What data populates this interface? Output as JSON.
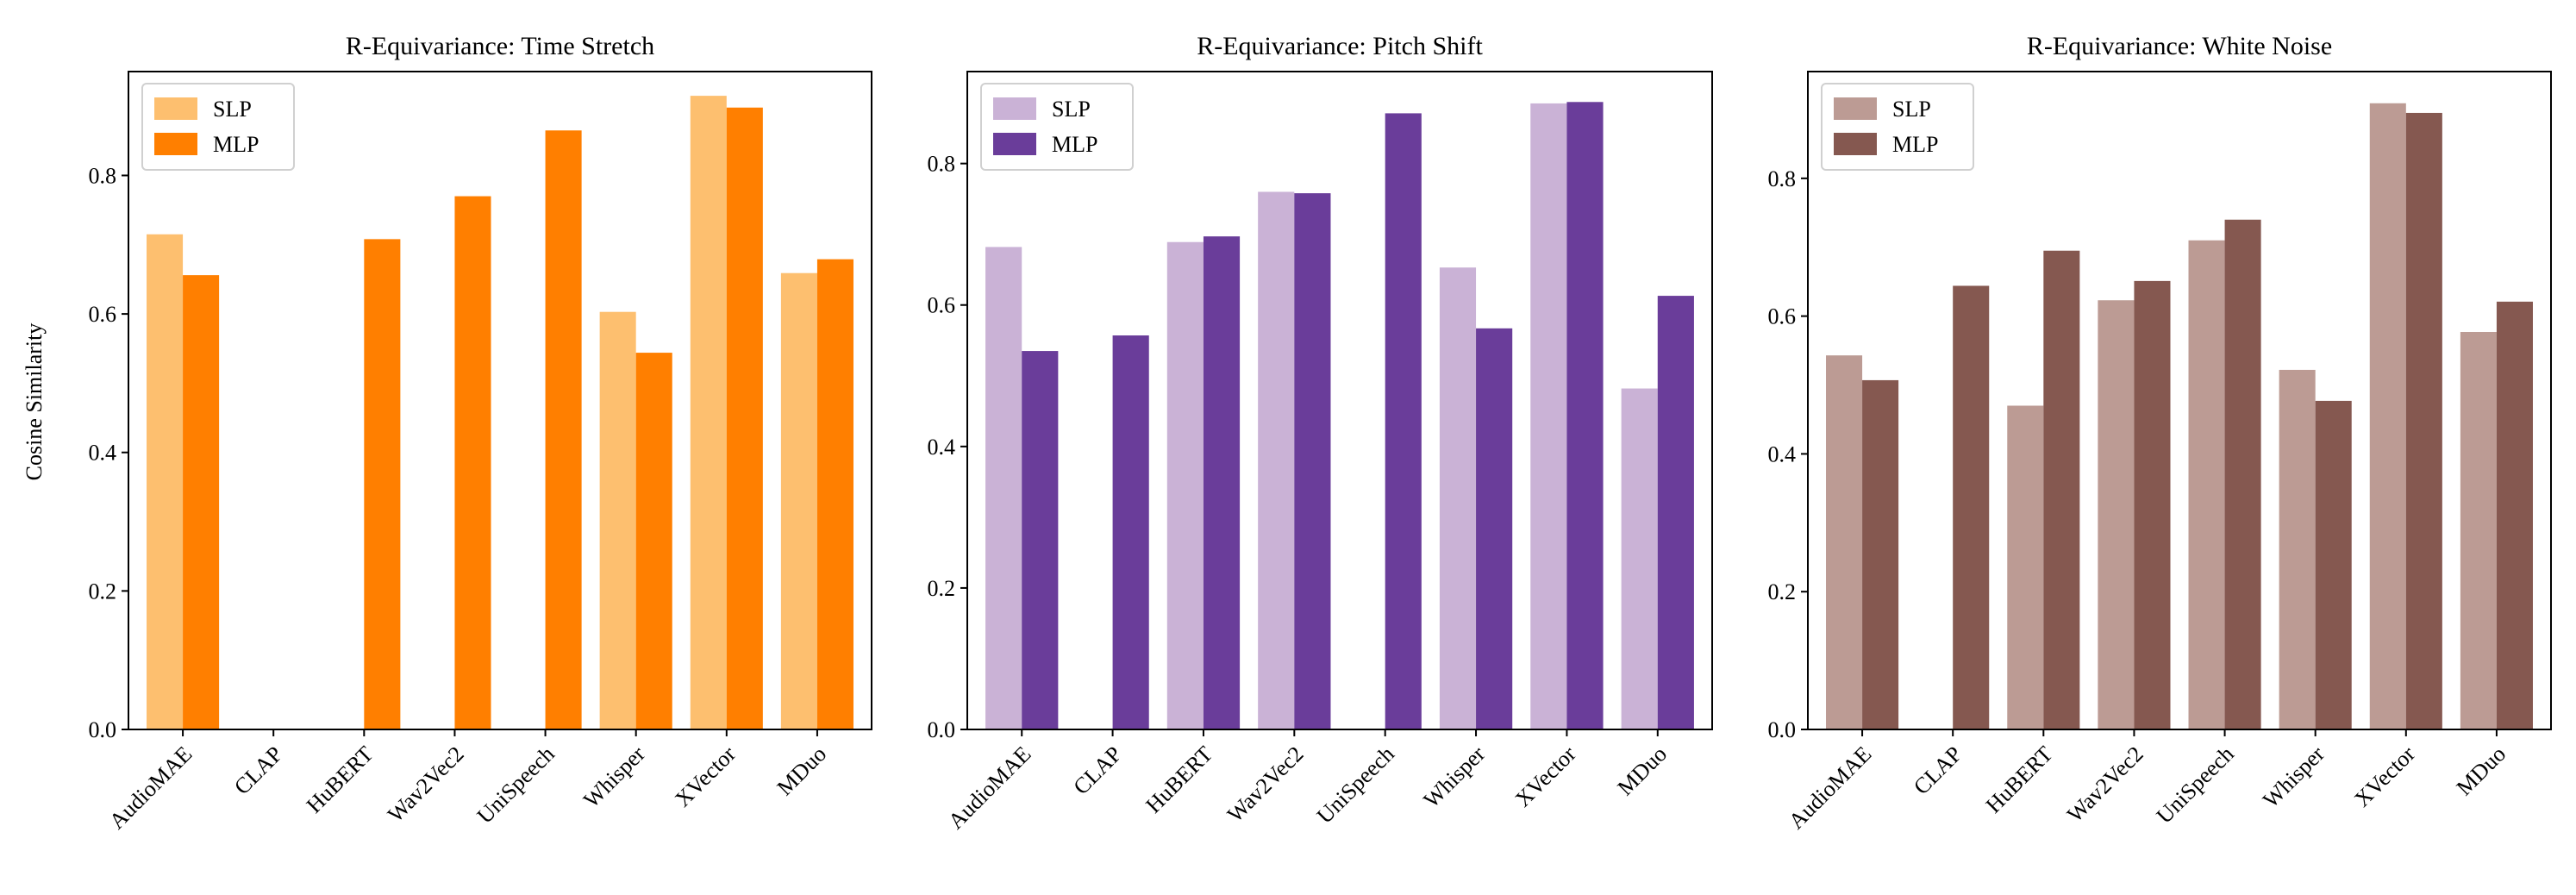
{
  "figure": {
    "ylabel": "Cosine Similarity"
  },
  "chart_data": [
    {
      "type": "bar",
      "title": "R-Equivariance: Time Stretch",
      "xlabel": "",
      "ylabel": "Cosine Similarity",
      "ylim": [
        0,
        0.95
      ],
      "yticks": [
        "0.0",
        "0.2",
        "0.4",
        "0.6",
        "0.8"
      ],
      "categories": [
        "AudioMAE",
        "CLAP",
        "HuBERT",
        "Wav2Vec2",
        "UniSpeech",
        "Whisper",
        "XVector",
        "MDuo"
      ],
      "legend_position": "top-left",
      "grid": false,
      "series": [
        {
          "name": "SLP",
          "color": "#fdbf6f",
          "values": [
            0.715,
            0,
            0,
            0,
            0,
            0.603,
            0.915,
            0.659
          ]
        },
        {
          "name": "MLP",
          "color": "#ff7f00",
          "values": [
            0.656,
            0,
            0.708,
            0.77,
            0.865,
            0.544,
            0.898,
            0.679
          ]
        }
      ]
    },
    {
      "type": "bar",
      "title": "R-Equivariance: Pitch Shift",
      "xlabel": "",
      "ylabel": "",
      "ylim": [
        0,
        0.93
      ],
      "yticks": [
        "0.0",
        "0.2",
        "0.4",
        "0.6",
        "0.8"
      ],
      "categories": [
        "AudioMAE",
        "CLAP",
        "HuBERT",
        "Wav2Vec2",
        "UniSpeech",
        "Whisper",
        "XVector",
        "MDuo"
      ],
      "legend_position": "top-left",
      "grid": false,
      "series": [
        {
          "name": "SLP",
          "color": "#cab2d6",
          "values": [
            0.682,
            0,
            0.689,
            0.76,
            0,
            0.653,
            0.885,
            0.482
          ]
        },
        {
          "name": "MLP",
          "color": "#6a3d9a",
          "values": [
            0.535,
            0.557,
            0.697,
            0.758,
            0.871,
            0.567,
            0.887,
            0.613
          ]
        }
      ]
    },
    {
      "type": "bar",
      "title": "R-Equivariance: White Noise",
      "xlabel": "",
      "ylabel": "",
      "ylim": [
        0,
        0.955
      ],
      "yticks": [
        "0.0",
        "0.2",
        "0.4",
        "0.6",
        "0.8"
      ],
      "categories": [
        "AudioMAE",
        "CLAP",
        "HuBERT",
        "Wav2Vec2",
        "UniSpeech",
        "Whisper",
        "XVector",
        "MDuo"
      ],
      "legend_position": "top-left",
      "grid": false,
      "series": [
        {
          "name": "SLP",
          "color": "#bc9b94",
          "values": [
            0.543,
            0,
            0.47,
            0.623,
            0.71,
            0.522,
            0.909,
            0.577
          ]
        },
        {
          "name": "MLP",
          "color": "#855850",
          "values": [
            0.507,
            0.644,
            0.695,
            0.651,
            0.74,
            0.477,
            0.895,
            0.621
          ]
        }
      ]
    }
  ]
}
